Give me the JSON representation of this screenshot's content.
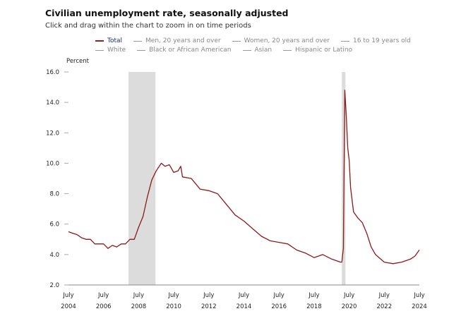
{
  "header": {
    "title": "Civilian unemployment rate, seasonally adjusted",
    "subtitle": "Click and drag within the chart to zoom in on time periods"
  },
  "legend": {
    "rows": [
      [
        "Total",
        "Men, 20 years and over",
        "Women, 20 years and over",
        "16 to 19 years old"
      ],
      [
        "White",
        "Black or African American",
        "Asian",
        "Hispanic or Latino"
      ]
    ],
    "active": "Total"
  },
  "colors": {
    "series": "#8b1a1a",
    "recession": "#dcdcdc",
    "axis": "#888888"
  },
  "chart_data": {
    "type": "line",
    "title": "Civilian unemployment rate, seasonally adjusted",
    "ylabel": "Percent",
    "ylim": [
      2.0,
      16.0
    ],
    "yticks": [
      "2.0",
      "4.0",
      "6.0",
      "8.0",
      "10.0",
      "12.0",
      "14.0",
      "16.0"
    ],
    "xlim": [
      2004.5,
      2024.5
    ],
    "xticks": [
      {
        "month": "July",
        "year": "2004"
      },
      {
        "month": "July",
        "year": "2006"
      },
      {
        "month": "July",
        "year": "2008"
      },
      {
        "month": "July",
        "year": "2010"
      },
      {
        "month": "July",
        "year": "2012"
      },
      {
        "month": "July",
        "year": "2014"
      },
      {
        "month": "July",
        "year": "2016"
      },
      {
        "month": "July",
        "year": "2018"
      },
      {
        "month": "July",
        "year": "2020"
      },
      {
        "month": "July",
        "year": "2022"
      },
      {
        "month": "July",
        "year": "2024"
      }
    ],
    "recessions": [
      [
        2007.92,
        2009.46
      ],
      [
        2020.08,
        2020.29
      ]
    ],
    "series": [
      {
        "name": "Total",
        "x": [
          2004.5,
          2004.75,
          2005.0,
          2005.25,
          2005.5,
          2005.75,
          2006.0,
          2006.25,
          2006.5,
          2006.75,
          2007.0,
          2007.25,
          2007.5,
          2007.75,
          2008.0,
          2008.25,
          2008.5,
          2008.75,
          2009.0,
          2009.25,
          2009.5,
          2009.79,
          2010.0,
          2010.25,
          2010.5,
          2010.75,
          2010.9,
          2011.0,
          2011.5,
          2012.0,
          2012.5,
          2013.0,
          2013.5,
          2014.0,
          2014.5,
          2015.0,
          2015.5,
          2016.0,
          2016.5,
          2017.0,
          2017.5,
          2018.0,
          2018.5,
          2019.0,
          2019.5,
          2020.0,
          2020.08,
          2020.17,
          2020.25,
          2020.33,
          2020.42,
          2020.5,
          2020.58,
          2020.75,
          2021.0,
          2021.25,
          2021.5,
          2021.75,
          2022.0,
          2022.5,
          2023.0,
          2023.5,
          2024.0,
          2024.25,
          2024.5
        ],
        "y": [
          5.5,
          5.4,
          5.3,
          5.1,
          5.0,
          5.0,
          4.7,
          4.7,
          4.7,
          4.4,
          4.6,
          4.5,
          4.7,
          4.7,
          5.0,
          5.0,
          5.8,
          6.5,
          7.8,
          8.9,
          9.5,
          10.0,
          9.8,
          9.9,
          9.4,
          9.5,
          9.8,
          9.1,
          9.0,
          8.3,
          8.2,
          8.0,
          7.3,
          6.6,
          6.2,
          5.7,
          5.2,
          4.9,
          4.8,
          4.7,
          4.3,
          4.1,
          3.8,
          4.0,
          3.7,
          3.5,
          3.5,
          4.4,
          14.8,
          13.2,
          11.0,
          10.2,
          8.4,
          6.8,
          6.4,
          6.1,
          5.4,
          4.5,
          4.0,
          3.5,
          3.4,
          3.5,
          3.7,
          3.9,
          4.3
        ]
      }
    ]
  }
}
